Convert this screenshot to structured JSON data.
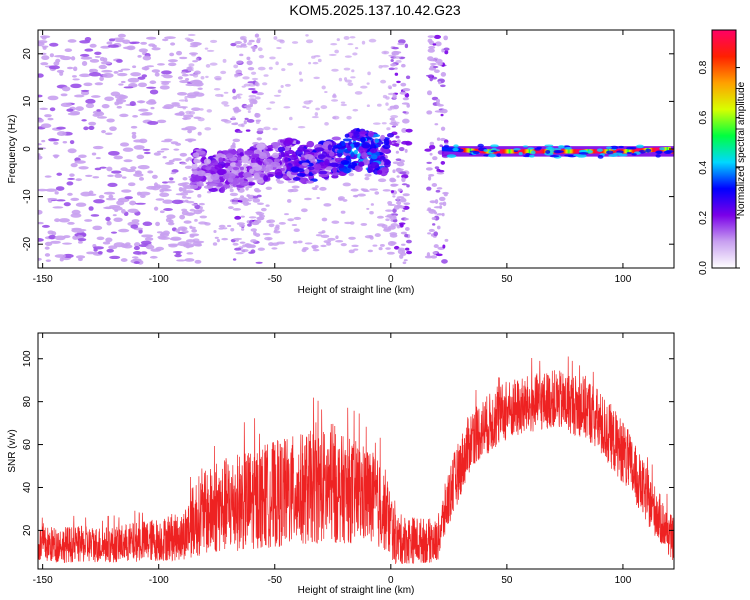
{
  "title": "KOM5.2025.137.10.42.G23",
  "chart_data": [
    {
      "type": "heatmap",
      "xlabel": "Height of straight line (km)",
      "ylabel": "Frequency (Hz)",
      "xlim": [
        -152,
        122
      ],
      "ylim": [
        -25,
        25
      ],
      "x_ticks": [
        -150,
        -100,
        -50,
        0,
        50,
        100
      ],
      "y_ticks": [
        -20,
        -10,
        0,
        10,
        20
      ],
      "colorbar": {
        "label": "Normalized spectral amplitude",
        "range": [
          0,
          0.95
        ],
        "ticks": [
          "0.0",
          "0.2",
          "0.4",
          "0.6",
          "0.8"
        ],
        "tick_values": [
          0.0,
          0.2,
          0.4,
          0.6,
          0.8
        ],
        "colors": [
          "#ffffff",
          "#c8a0f0",
          "#7a00e8",
          "#0000ff",
          "#00d8ff",
          "#00ff40",
          "#d8ff00",
          "#ffa000",
          "#ff2000",
          "#ff0066"
        ]
      },
      "ridge": [
        {
          "x": -85,
          "y": -4,
          "amp": 0.2
        },
        {
          "x": -75,
          "y": -5,
          "amp": 0.22
        },
        {
          "x": -65,
          "y": -4,
          "amp": 0.2
        },
        {
          "x": -55,
          "y": -3,
          "amp": 0.22
        },
        {
          "x": -45,
          "y": -2,
          "amp": 0.25
        },
        {
          "x": -35,
          "y": -3,
          "amp": 0.3
        },
        {
          "x": -25,
          "y": -2,
          "amp": 0.32
        },
        {
          "x": -15,
          "y": 0,
          "amp": 0.4
        },
        {
          "x": -5,
          "y": -1,
          "amp": 0.35
        },
        {
          "x": 0,
          "y": -1,
          "amp": 0.25
        },
        {
          "x": 22,
          "y": 0,
          "amp": 0.5
        },
        {
          "x": 40,
          "y": -0.5,
          "amp": 0.95
        },
        {
          "x": 60,
          "y": -0.5,
          "amp": 0.95
        },
        {
          "x": 80,
          "y": -0.5,
          "amp": 0.95
        },
        {
          "x": 100,
          "y": -0.5,
          "amp": 0.95
        },
        {
          "x": 120,
          "y": 0,
          "amp": 0.95
        }
      ]
    },
    {
      "type": "line",
      "xlabel": "Height of straight line (km)",
      "ylabel": "SNR (v/v)",
      "xlim": [
        -152,
        122
      ],
      "ylim": [
        2,
        112
      ],
      "x_ticks": [
        -150,
        -100,
        -50,
        0,
        50,
        100
      ],
      "y_ticks": [
        20,
        40,
        60,
        80,
        100
      ],
      "color": "#ee2222",
      "envelope": [
        {
          "x": -152,
          "low": 5,
          "high": 22
        },
        {
          "x": -120,
          "low": 5,
          "high": 22
        },
        {
          "x": -90,
          "low": 6,
          "high": 28
        },
        {
          "x": -84,
          "low": 8,
          "high": 45
        },
        {
          "x": -70,
          "low": 10,
          "high": 55
        },
        {
          "x": -50,
          "low": 12,
          "high": 62
        },
        {
          "x": -30,
          "low": 14,
          "high": 68
        },
        {
          "x": -10,
          "low": 14,
          "high": 60
        },
        {
          "x": -2,
          "low": 10,
          "high": 48
        },
        {
          "x": 2,
          "low": 4,
          "high": 28
        },
        {
          "x": 20,
          "low": 5,
          "high": 25
        },
        {
          "x": 25,
          "low": 22,
          "high": 50
        },
        {
          "x": 35,
          "low": 50,
          "high": 78
        },
        {
          "x": 50,
          "low": 62,
          "high": 90
        },
        {
          "x": 70,
          "low": 68,
          "high": 95
        },
        {
          "x": 85,
          "low": 62,
          "high": 92
        },
        {
          "x": 100,
          "low": 42,
          "high": 72
        },
        {
          "x": 112,
          "low": 20,
          "high": 45
        },
        {
          "x": 122,
          "low": 5,
          "high": 25
        }
      ]
    }
  ]
}
